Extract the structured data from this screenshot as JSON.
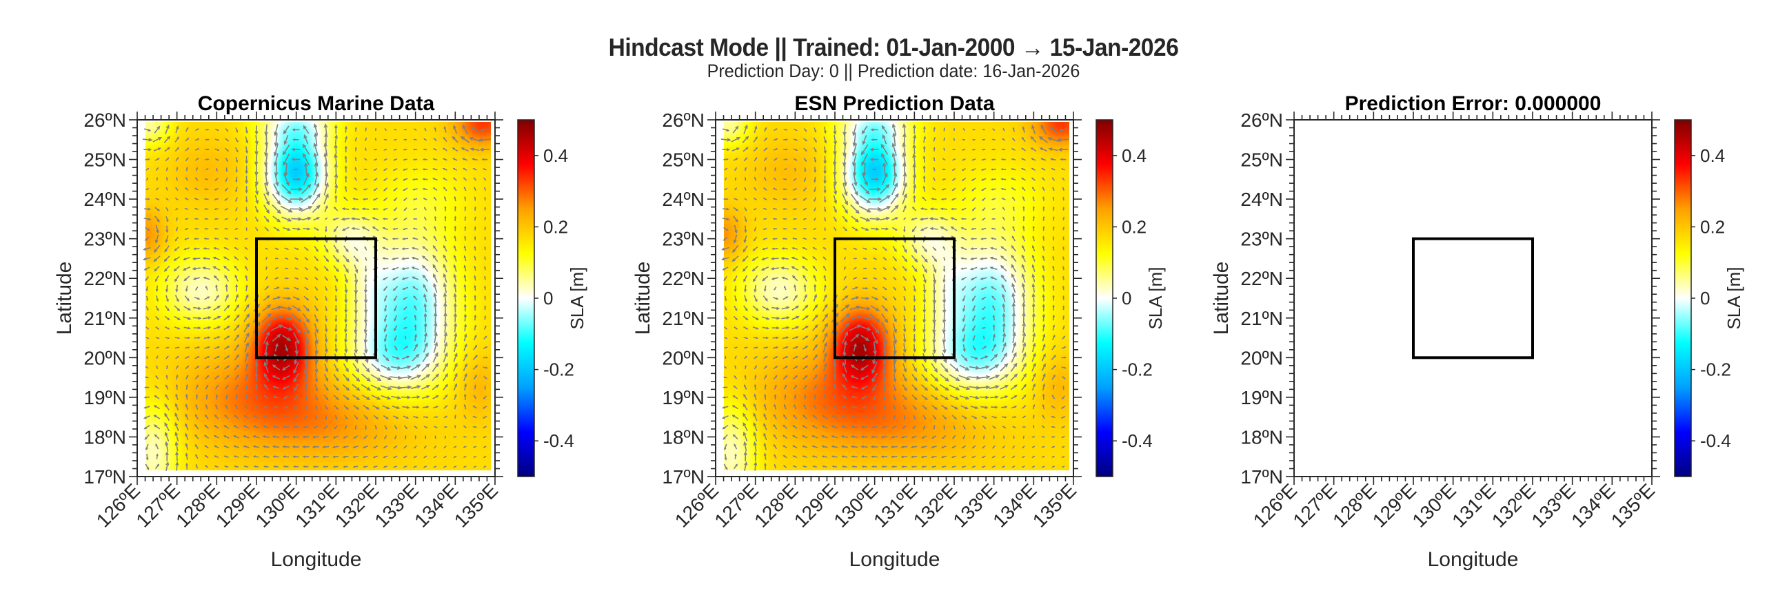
{
  "figure": {
    "suptitle": "Hindcast Mode || Trained: 01-Jan-2000 → 15-Jan-2026",
    "subtitle": "Prediction Day: 0 || Prediction date: 16-Jan-2026"
  },
  "chart_data": [
    {
      "type": "heatmap",
      "title": "Copernicus Marine Data",
      "xlabel": "Longitude",
      "ylabel": "Latitude",
      "xlim": [
        126,
        135
      ],
      "ylim": [
        17,
        26
      ],
      "xticks": [
        126,
        127,
        128,
        129,
        130,
        131,
        132,
        133,
        134,
        135
      ],
      "xtick_labels": [
        "126ºE",
        "127ºE",
        "128ºE",
        "129ºE",
        "130ºE",
        "131ºE",
        "132ºE",
        "133ºE",
        "134ºE",
        "135ºE"
      ],
      "yticks": [
        17,
        18,
        19,
        20,
        21,
        22,
        23,
        24,
        25,
        26
      ],
      "ytick_labels": [
        "17ºN",
        "18ºN",
        "19ºN",
        "20ºN",
        "21ºN",
        "22ºN",
        "23ºN",
        "24ºN",
        "25ºN",
        "26ºN"
      ],
      "field_extent": {
        "lon": [
          126.2,
          134.9
        ],
        "lat": [
          17.15,
          25.95
        ]
      },
      "field_visible": true,
      "vectors_visible": true,
      "colorbar": {
        "label": "SLA [m]",
        "clim": [
          -0.5,
          0.5
        ],
        "ticks": [
          -0.4,
          -0.2,
          0,
          0.2,
          0.4
        ],
        "tick_labels": [
          "-0.4",
          "-0.2",
          "0",
          "0.2",
          "0.4"
        ],
        "colormap": [
          "#00007f",
          "#0000ff",
          "#00a0ff",
          "#00ffff",
          "#ffffff",
          "#ffff00",
          "#ffa000",
          "#ff0000",
          "#7f0000"
        ]
      },
      "box": {
        "lon": [
          129,
          132
        ],
        "lat": [
          20,
          23
        ],
        "color": "#000000"
      },
      "vector_color": "#808080"
    },
    {
      "type": "heatmap",
      "title": "ESN Prediction Data",
      "xlabel": "Longitude",
      "ylabel": "Latitude",
      "xlim": [
        126,
        135
      ],
      "ylim": [
        17,
        26
      ],
      "xticks": [
        126,
        127,
        128,
        129,
        130,
        131,
        132,
        133,
        134,
        135
      ],
      "xtick_labels": [
        "126ºE",
        "127ºE",
        "128ºE",
        "129ºE",
        "130ºE",
        "131ºE",
        "132ºE",
        "133ºE",
        "134ºE",
        "135ºE"
      ],
      "yticks": [
        17,
        18,
        19,
        20,
        21,
        22,
        23,
        24,
        25,
        26
      ],
      "ytick_labels": [
        "17ºN",
        "18ºN",
        "19ºN",
        "20ºN",
        "21ºN",
        "22ºN",
        "23ºN",
        "24ºN",
        "25ºN",
        "26ºN"
      ],
      "field_extent": {
        "lon": [
          126.2,
          134.9
        ],
        "lat": [
          17.15,
          25.95
        ]
      },
      "field_visible": true,
      "vectors_visible": true,
      "colorbar": {
        "label": "SLA [m]",
        "clim": [
          -0.5,
          0.5
        ],
        "ticks": [
          -0.4,
          -0.2,
          0,
          0.2,
          0.4
        ],
        "tick_labels": [
          "-0.4",
          "-0.2",
          "0",
          "0.2",
          "0.4"
        ],
        "colormap": [
          "#00007f",
          "#0000ff",
          "#00a0ff",
          "#00ffff",
          "#ffffff",
          "#ffff00",
          "#ffa000",
          "#ff0000",
          "#7f0000"
        ]
      },
      "box": {
        "lon": [
          129,
          132
        ],
        "lat": [
          20,
          23
        ],
        "color": "#000000"
      },
      "vector_color": "#808080"
    },
    {
      "type": "heatmap",
      "title": "Prediction Error: 0.000000",
      "xlabel": "Longitude",
      "ylabel": "Latitude",
      "xlim": [
        126,
        135
      ],
      "ylim": [
        17,
        26
      ],
      "xticks": [
        126,
        127,
        128,
        129,
        130,
        131,
        132,
        133,
        134,
        135
      ],
      "xtick_labels": [
        "126ºE",
        "127ºE",
        "128ºE",
        "129ºE",
        "130ºE",
        "131ºE",
        "132ºE",
        "133ºE",
        "134ºE",
        "135ºE"
      ],
      "yticks": [
        17,
        18,
        19,
        20,
        21,
        22,
        23,
        24,
        25,
        26
      ],
      "ytick_labels": [
        "17ºN",
        "18ºN",
        "19ºN",
        "20ºN",
        "21ºN",
        "22ºN",
        "23ºN",
        "24ºN",
        "25ºN",
        "26ºN"
      ],
      "field_extent": {
        "lon": [
          126.2,
          134.9
        ],
        "lat": [
          17.15,
          25.95
        ]
      },
      "field_visible": false,
      "vectors_visible": false,
      "colorbar": {
        "label": "SLA [m]",
        "clim": [
          -0.5,
          0.5
        ],
        "ticks": [
          -0.4,
          -0.2,
          0,
          0.2,
          0.4
        ],
        "tick_labels": [
          "-0.4",
          "-0.2",
          "0",
          "0.2",
          "0.4"
        ],
        "colormap": [
          "#00007f",
          "#0000ff",
          "#00a0ff",
          "#00ffff",
          "#ffffff",
          "#ffff00",
          "#ffa000",
          "#ff0000",
          "#7f0000"
        ]
      },
      "box": {
        "lon": [
          129,
          132
        ],
        "lat": [
          20,
          23
        ],
        "color": "#000000"
      },
      "vector_color": "#808080"
    }
  ],
  "sla_field_model": {
    "units": "m",
    "background": 0.17,
    "features": [
      {
        "lon": 130.0,
        "lat": 24.7,
        "amp": -0.36,
        "sx": 0.55,
        "sy": 0.75
      },
      {
        "lon": 130.0,
        "lat": 25.9,
        "amp": -0.12,
        "sx": 0.7,
        "sy": 0.35
      },
      {
        "lon": 132.9,
        "lat": 21.3,
        "amp": -0.25,
        "sx": 0.75,
        "sy": 1.2
      },
      {
        "lon": 132.3,
        "lat": 20.0,
        "amp": -0.14,
        "sx": 0.8,
        "sy": 0.6
      },
      {
        "lon": 131.3,
        "lat": 23.0,
        "amp": -0.12,
        "sx": 0.5,
        "sy": 0.5
      },
      {
        "lon": 131.8,
        "lat": 21.8,
        "amp": -0.08,
        "sx": 0.4,
        "sy": 0.9
      },
      {
        "lon": 129.65,
        "lat": 20.3,
        "amp": 0.26,
        "sx": 0.5,
        "sy": 0.65
      },
      {
        "lon": 129.2,
        "lat": 19.0,
        "amp": 0.12,
        "sx": 1.4,
        "sy": 0.8
      },
      {
        "lon": 131.0,
        "lat": 18.2,
        "amp": 0.06,
        "sx": 1.5,
        "sy": 0.6
      },
      {
        "lon": 127.6,
        "lat": 21.7,
        "amp": -0.14,
        "sx": 0.7,
        "sy": 0.6
      },
      {
        "lon": 126.4,
        "lat": 17.6,
        "amp": -0.14,
        "sx": 0.45,
        "sy": 0.9
      },
      {
        "lon": 126.3,
        "lat": 25.9,
        "amp": -0.12,
        "sx": 0.4,
        "sy": 0.4
      },
      {
        "lon": 126.2,
        "lat": 23.1,
        "amp": 0.09,
        "sx": 0.35,
        "sy": 0.45
      },
      {
        "lon": 127.8,
        "lat": 24.7,
        "amp": 0.04,
        "sx": 0.7,
        "sy": 0.6
      },
      {
        "lon": 134.7,
        "lat": 25.9,
        "amp": 0.16,
        "sx": 0.5,
        "sy": 0.4
      },
      {
        "lon": 134.6,
        "lat": 19.3,
        "amp": 0.05,
        "sx": 0.4,
        "sy": 0.6
      },
      {
        "lon": 133.2,
        "lat": 24.0,
        "amp": -0.05,
        "sx": 0.8,
        "sy": 0.6
      }
    ]
  }
}
